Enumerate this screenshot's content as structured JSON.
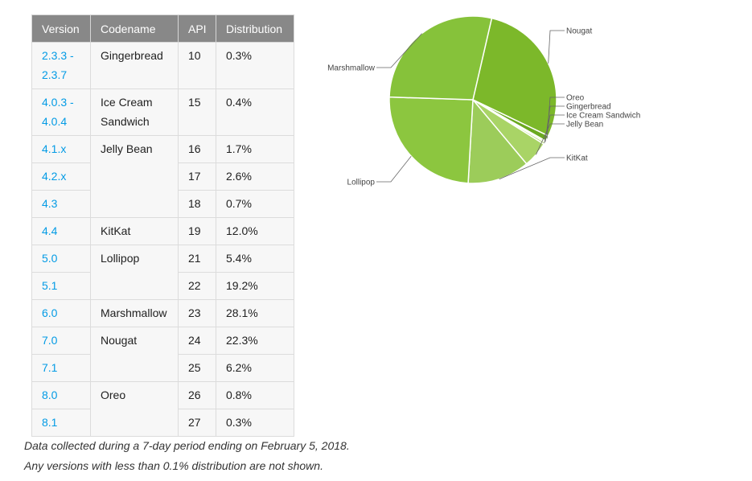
{
  "table": {
    "headers": [
      "Version",
      "Codename",
      "API",
      "Distribution"
    ],
    "rows": [
      {
        "version": "2.3.3 -",
        "version2": "2.3.7",
        "codename": "Gingerbread",
        "api": "10",
        "dist": "0.3%"
      },
      {
        "version": "4.0.3 -",
        "version2": "4.0.4",
        "codename": "Ice Cream",
        "codename2": "Sandwich",
        "api": "15",
        "dist": "0.4%"
      },
      {
        "version": "4.1.x",
        "codename": "Jelly Bean",
        "api": "16",
        "dist": "1.7%"
      },
      {
        "version": "4.2.x",
        "api": "17",
        "dist": "2.6%"
      },
      {
        "version": "4.3",
        "api": "18",
        "dist": "0.7%"
      },
      {
        "version": "4.4",
        "codename": "KitKat",
        "api": "19",
        "dist": "12.0%"
      },
      {
        "version": "5.0",
        "codename": "Lollipop",
        "api": "21",
        "dist": "5.4%"
      },
      {
        "version": "5.1",
        "api": "22",
        "dist": "19.2%"
      },
      {
        "version": "6.0",
        "codename": "Marshmallow",
        "api": "23",
        "dist": "28.1%"
      },
      {
        "version": "7.0",
        "codename": "Nougat",
        "api": "24",
        "dist": "22.3%"
      },
      {
        "version": "7.1",
        "api": "25",
        "dist": "6.2%"
      },
      {
        "version": "8.0",
        "codename": "Oreo",
        "api": "26",
        "dist": "0.8%"
      },
      {
        "version": "8.1",
        "api": "27",
        "dist": "0.3%"
      }
    ]
  },
  "footnotes": [
    "Data collected during a 7-day period ending on February 5, 2018.",
    "Any versions with less than 0.1% distribution are not shown."
  ],
  "chart_data": {
    "type": "pie",
    "slices": [
      {
        "label": "Nougat",
        "value": 28.5,
        "color": "#7cb82a"
      },
      {
        "label": "Oreo",
        "value": 1.1,
        "color": "#6aa91f"
      },
      {
        "label": "Gingerbread",
        "value": 0.3,
        "color": "#c5e08f"
      },
      {
        "label": "Ice Cream Sandwich",
        "value": 0.4,
        "color": "#b6d97a"
      },
      {
        "label": "Jelly Bean",
        "value": 5.0,
        "color": "#a9d466"
      },
      {
        "label": "KitKat",
        "value": 12.0,
        "color": "#9ccc5a"
      },
      {
        "label": "Lollipop",
        "value": 24.6,
        "color": "#8cc63f"
      },
      {
        "label": "Marshmallow",
        "value": 28.1,
        "color": "#86c23a"
      }
    ]
  }
}
